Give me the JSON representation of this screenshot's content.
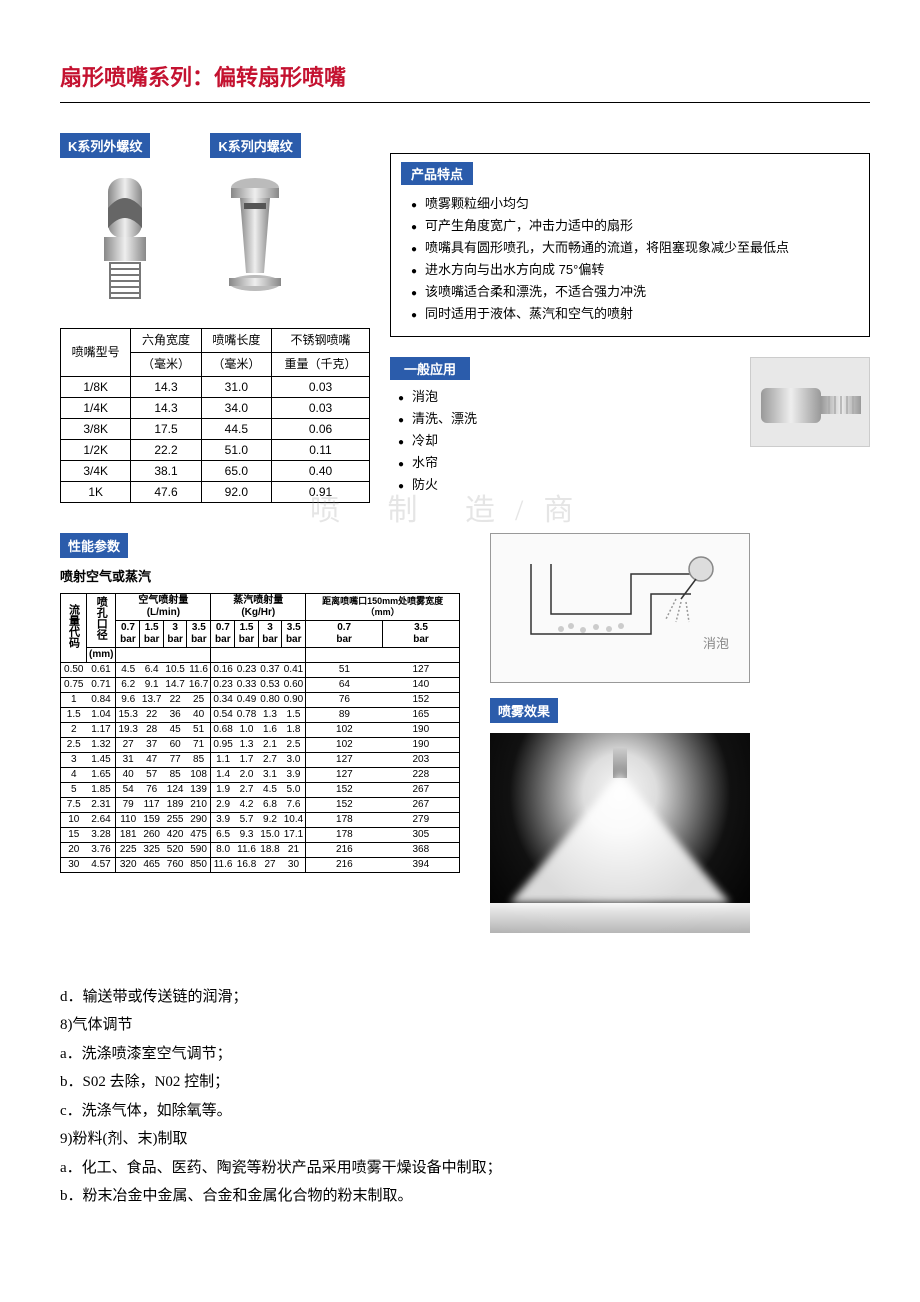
{
  "title": "扇形喷嘴系列：偏转扇形喷嘴",
  "series": {
    "external": "K系列外螺纹",
    "internal": "K系列内螺纹"
  },
  "size_table": {
    "headers": {
      "model": "喷嘴型号",
      "hex": "六角宽度",
      "hex_unit": "（毫米）",
      "len": "喷嘴长度",
      "len_unit": "（毫米）",
      "weight": "不锈钢喷嘴",
      "weight_unit": "重量（千克）"
    },
    "rows": [
      {
        "model": "1/8K",
        "hex": "14.3",
        "len": "31.0",
        "wt": "0.03"
      },
      {
        "model": "1/4K",
        "hex": "14.3",
        "len": "34.0",
        "wt": "0.03"
      },
      {
        "model": "3/8K",
        "hex": "17.5",
        "len": "44.5",
        "wt": "0.06"
      },
      {
        "model": "1/2K",
        "hex": "22.2",
        "len": "51.0",
        "wt": "0.11"
      },
      {
        "model": "3/4K",
        "hex": "38.1",
        "len": "65.0",
        "wt": "0.40"
      },
      {
        "model": "1K",
        "hex": "47.6",
        "len": "92.0",
        "wt": "0.91"
      }
    ]
  },
  "features": {
    "title": "产品特点",
    "items": [
      "喷雾颗粒细小均匀",
      "可产生角度宽广，冲击力适中的扇形",
      "喷嘴具有圆形喷孔，大而畅通的流道，将阻塞现象减少至最低点",
      "进水方向与出水方向成 75°偏转",
      "该喷嘴适合柔和漂洗，不适合强力冲洗",
      "同时适用于液体、蒸汽和空气的喷射"
    ]
  },
  "applications": {
    "title": "一般应用",
    "items": [
      "消泡",
      "清洗、漂洗",
      "冷却",
      "水帘",
      "防火"
    ]
  },
  "perf": {
    "label": "性能参数",
    "subtitle": "喷射空气或蒸汽",
    "col_flow": "流量代码",
    "col_dia": "喷孔口径",
    "col_dia_unit": "(mm)",
    "air_header": "空气喷射量",
    "air_unit": "(L/min)",
    "steam_header": "蒸汽喷射量",
    "steam_unit": "(Kg/Hr)",
    "dist_header": "距离喷嘴口150mm处喷雾宽度（mm）",
    "pressures": [
      "0.7",
      "1.5",
      "3",
      "3.5"
    ],
    "dist_pressures": [
      "0.7",
      "3.5"
    ],
    "unit": "bar",
    "rows": [
      {
        "f": "0.50",
        "d": "0.61",
        "a": [
          "4.5",
          "6.4",
          "10.5",
          "11.6"
        ],
        "s": [
          "0.16",
          "0.23",
          "0.37",
          "0.41"
        ],
        "w": [
          "51",
          "127"
        ]
      },
      {
        "f": "0.75",
        "d": "0.71",
        "a": [
          "6.2",
          "9.1",
          "14.7",
          "16.7"
        ],
        "s": [
          "0.23",
          "0.33",
          "0.53",
          "0.60"
        ],
        "w": [
          "64",
          "140"
        ]
      },
      {
        "f": "1",
        "d": "0.84",
        "a": [
          "9.6",
          "13.7",
          "22",
          "25"
        ],
        "s": [
          "0.34",
          "0.49",
          "0.80",
          "0.90"
        ],
        "w": [
          "76",
          "152"
        ]
      },
      {
        "f": "1.5",
        "d": "1.04",
        "a": [
          "15.3",
          "22",
          "36",
          "40"
        ],
        "s": [
          "0.54",
          "0.78",
          "1.3",
          "1.5"
        ],
        "w": [
          "89",
          "165"
        ]
      },
      {
        "f": "2",
        "d": "1.17",
        "a": [
          "19.3",
          "28",
          "45",
          "51"
        ],
        "s": [
          "0.68",
          "1.0",
          "1.6",
          "1.8"
        ],
        "w": [
          "102",
          "190"
        ]
      },
      {
        "f": "2.5",
        "d": "1.32",
        "a": [
          "27",
          "37",
          "60",
          "71"
        ],
        "s": [
          "0.95",
          "1.3",
          "2.1",
          "2.5"
        ],
        "w": [
          "102",
          "190"
        ]
      },
      {
        "f": "3",
        "d": "1.45",
        "a": [
          "31",
          "47",
          "77",
          "85"
        ],
        "s": [
          "1.1",
          "1.7",
          "2.7",
          "3.0"
        ],
        "w": [
          "127",
          "203"
        ]
      },
      {
        "f": "4",
        "d": "1.65",
        "a": [
          "40",
          "57",
          "85",
          "108"
        ],
        "s": [
          "1.4",
          "2.0",
          "3.1",
          "3.9"
        ],
        "w": [
          "127",
          "228"
        ]
      },
      {
        "f": "5",
        "d": "1.85",
        "a": [
          "54",
          "76",
          "124",
          "139"
        ],
        "s": [
          "1.9",
          "2.7",
          "4.5",
          "5.0"
        ],
        "w": [
          "152",
          "267"
        ]
      },
      {
        "f": "7.5",
        "d": "2.31",
        "a": [
          "79",
          "117",
          "189",
          "210"
        ],
        "s": [
          "2.9",
          "4.2",
          "6.8",
          "7.6"
        ],
        "w": [
          "152",
          "267"
        ]
      },
      {
        "f": "10",
        "d": "2.64",
        "a": [
          "110",
          "159",
          "255",
          "290"
        ],
        "s": [
          "3.9",
          "5.7",
          "9.2",
          "10.4"
        ],
        "w": [
          "178",
          "279"
        ]
      },
      {
        "f": "15",
        "d": "3.28",
        "a": [
          "181",
          "260",
          "420",
          "475"
        ],
        "s": [
          "6.5",
          "9.3",
          "15.0",
          "17.1"
        ],
        "w": [
          "178",
          "305"
        ]
      },
      {
        "f": "20",
        "d": "3.76",
        "a": [
          "225",
          "325",
          "520",
          "590"
        ],
        "s": [
          "8.0",
          "11.6",
          "18.8",
          "21"
        ],
        "w": [
          "216",
          "368"
        ]
      },
      {
        "f": "30",
        "d": "4.57",
        "a": [
          "320",
          "465",
          "760",
          "850"
        ],
        "s": [
          "11.6",
          "16.8",
          "27",
          "30"
        ],
        "w": [
          "216",
          "394"
        ]
      }
    ]
  },
  "diagram_label": "消泡",
  "spray_title": "喷雾效果",
  "watermark": "喷 制 造/商",
  "bottom": {
    "lines": [
      "d．输送带或传送链的润滑；",
      "8)气体调节",
      "a．洗涤喷漆室空气调节；",
      "b．S02 去除，N02 控制；",
      "c．洗涤气体，如除氧等。",
      "9)粉料(剂、末)制取",
      "a．化工、食品、医药、陶瓷等粉状产品采用喷雾干燥设备中制取；",
      "b．粉末冶金中金属、合金和金属化合物的粉末制取。"
    ]
  }
}
